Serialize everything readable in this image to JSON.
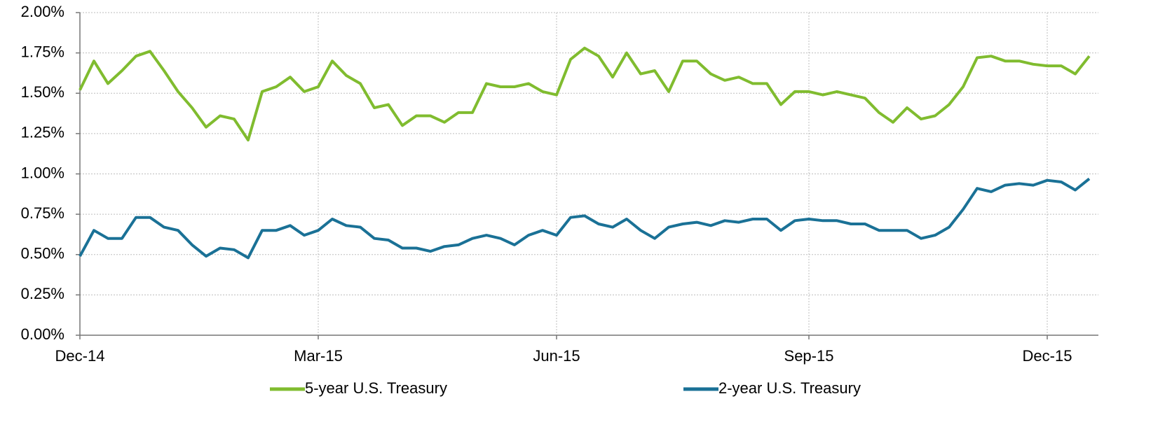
{
  "chart_data": {
    "type": "line",
    "categories": [
      "Dec-14",
      null,
      null,
      null,
      null,
      null,
      null,
      null,
      null,
      null,
      null,
      null,
      null,
      null,
      null,
      null,
      null,
      "Mar-15",
      null,
      null,
      null,
      null,
      null,
      null,
      null,
      null,
      null,
      null,
      null,
      null,
      null,
      null,
      null,
      null,
      "Jun-15",
      null,
      null,
      null,
      null,
      null,
      null,
      null,
      null,
      null,
      null,
      null,
      null,
      null,
      null,
      null,
      null,
      null,
      "Sep-15",
      null,
      null,
      null,
      null,
      null,
      null,
      null,
      null,
      null,
      null,
      null,
      null,
      null,
      null,
      null,
      null,
      "Dec-15",
      null,
      null,
      null
    ],
    "series": [
      {
        "name": "5-year U.S. Treasury",
        "color": "#80bc2f",
        "values": [
          1.52,
          1.7,
          1.56,
          1.64,
          1.73,
          1.76,
          1.64,
          1.51,
          1.41,
          1.29,
          1.36,
          1.34,
          1.21,
          1.51,
          1.54,
          1.6,
          1.51,
          1.54,
          1.7,
          1.61,
          1.56,
          1.41,
          1.43,
          1.3,
          1.36,
          1.36,
          1.32,
          1.38,
          1.38,
          1.56,
          1.54,
          1.54,
          1.56,
          1.51,
          1.49,
          1.71,
          1.78,
          1.73,
          1.6,
          1.75,
          1.62,
          1.64,
          1.51,
          1.7,
          1.7,
          1.62,
          1.58,
          1.6,
          1.56,
          1.56,
          1.43,
          1.51,
          1.51,
          1.49,
          1.51,
          1.49,
          1.47,
          1.38,
          1.32,
          1.41,
          1.34,
          1.36,
          1.43,
          1.54,
          1.72,
          1.73,
          1.7,
          1.7,
          1.68,
          1.67,
          1.67,
          1.62,
          1.73
        ]
      },
      {
        "name": "2-year U.S. Treasury",
        "color": "#1a7196",
        "values": [
          0.49,
          0.65,
          0.6,
          0.6,
          0.73,
          0.73,
          0.67,
          0.65,
          0.56,
          0.49,
          0.54,
          0.53,
          0.48,
          0.65,
          0.65,
          0.68,
          0.62,
          0.65,
          0.72,
          0.68,
          0.67,
          0.6,
          0.59,
          0.54,
          0.54,
          0.52,
          0.55,
          0.56,
          0.6,
          0.62,
          0.6,
          0.56,
          0.62,
          0.65,
          0.62,
          0.73,
          0.74,
          0.69,
          0.67,
          0.72,
          0.65,
          0.6,
          0.67,
          0.69,
          0.7,
          0.68,
          0.71,
          0.7,
          0.72,
          0.72,
          0.65,
          0.71,
          0.72,
          0.71,
          0.71,
          0.69,
          0.69,
          0.65,
          0.65,
          0.65,
          0.6,
          0.62,
          0.67,
          0.78,
          0.91,
          0.89,
          0.93,
          0.94,
          0.93,
          0.96,
          0.95,
          0.9,
          0.97
        ]
      }
    ],
    "ylim": [
      0,
      2
    ],
    "yticks": [
      {
        "value": 0,
        "label": "0.00%"
      },
      {
        "value": 0.25,
        "label": "0.25%"
      },
      {
        "value": 0.5,
        "label": "0.50%"
      },
      {
        "value": 0.75,
        "label": "0.75%"
      },
      {
        "value": 1,
        "label": "1.00%"
      },
      {
        "value": 1.25,
        "label": "1.25%"
      },
      {
        "value": 1.5,
        "label": "1.50%"
      },
      {
        "value": 1.75,
        "label": "1.75%"
      },
      {
        "value": 2,
        "label": "2.00%"
      }
    ],
    "grid": true,
    "legend": "bottom"
  }
}
